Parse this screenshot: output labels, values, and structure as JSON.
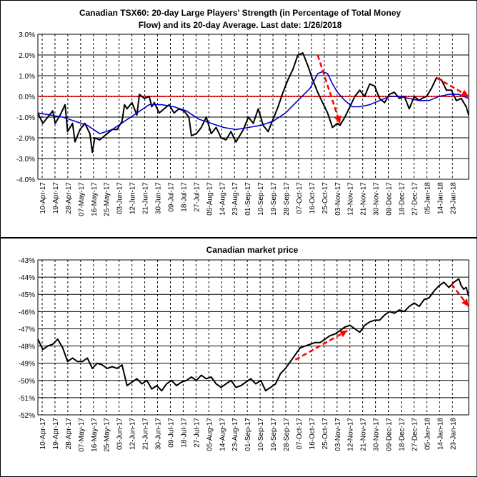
{
  "chart_data": [
    {
      "type": "line",
      "title": "Canadian TSX60: 20-day Large Players' Strength (in Percentage of Total Money",
      "title_line2": "Flow) and its 20-day Average. Last date: 1/26/2018",
      "ylim": [
        -4,
        3
      ],
      "y_ticks": [
        "3.0%",
        "2.0%",
        "1.0%",
        "0.0%",
        "-1.0%",
        "-2.0%",
        "-3.0%",
        "-4.0%"
      ],
      "x_ticks": [
        "10-Apr-17",
        "19-Apr-17",
        "28-Apr-17",
        "07-May-17",
        "16-May-17",
        "25-May-17",
        "03-Jun-17",
        "12-Jun-17",
        "21-Jun-17",
        "30-Jun-17",
        "09-Jul-17",
        "18-Jul-17",
        "27-Jul-17",
        "05-Aug-17",
        "14-Aug-17",
        "23-Aug-17",
        "01-Sep-17",
        "10-Sep-17",
        "19-Sep-17",
        "28-Sep-17",
        "07-Oct-17",
        "16-Oct-17",
        "25-Oct-17",
        "03-Nov-17",
        "12-Nov-17",
        "21-Nov-17",
        "30-Nov-17",
        "09-Dec-17",
        "18-Dec-17",
        "27-Dec-17",
        "05-Jan-18",
        "14-Jan-18",
        "23-Jan-18"
      ],
      "grid": true,
      "zero_line_color": "#cc0000",
      "series": [
        {
          "color": "#000000",
          "points": [
            [
              0,
              -0.8
            ],
            [
              2,
              -1.3
            ],
            [
              4,
              -1.0
            ],
            [
              6,
              -0.7
            ],
            [
              7,
              -1.3
            ],
            [
              9,
              -0.9
            ],
            [
              11,
              -0.4
            ],
            [
              12,
              -1.7
            ],
            [
              14,
              -1.3
            ],
            [
              15,
              -2.2
            ],
            [
              17,
              -1.6
            ],
            [
              19,
              -1.3
            ],
            [
              21,
              -1.8
            ],
            [
              22,
              -2.7
            ],
            [
              23,
              -2.0
            ],
            [
              25,
              -2.1
            ],
            [
              26,
              -2.0
            ],
            [
              28,
              -1.8
            ],
            [
              30,
              -1.6
            ],
            [
              32,
              -1.6
            ],
            [
              34,
              -1.2
            ],
            [
              35,
              -0.4
            ],
            [
              36,
              -0.6
            ],
            [
              38,
              -0.3
            ],
            [
              40,
              -0.9
            ],
            [
              41,
              0.1
            ],
            [
              43,
              -0.1
            ],
            [
              45,
              0.0
            ],
            [
              46,
              -0.5
            ],
            [
              47,
              -0.3
            ],
            [
              49,
              -0.8
            ],
            [
              51,
              -0.6
            ],
            [
              53,
              -0.4
            ],
            [
              55,
              -0.8
            ],
            [
              57,
              -0.6
            ],
            [
              59,
              -0.7
            ],
            [
              61,
              -1.0
            ],
            [
              62,
              -1.9
            ],
            [
              64,
              -1.8
            ],
            [
              66,
              -1.5
            ],
            [
              68,
              -1.0
            ],
            [
              70,
              -1.8
            ],
            [
              72,
              -1.5
            ],
            [
              74,
              -2.0
            ],
            [
              76,
              -2.1
            ],
            [
              78,
              -1.7
            ],
            [
              80,
              -2.2
            ],
            [
              81,
              -2.0
            ],
            [
              83,
              -1.6
            ],
            [
              85,
              -1.0
            ],
            [
              87,
              -1.3
            ],
            [
              89,
              -0.6
            ],
            [
              91,
              -1.4
            ],
            [
              93,
              -1.7
            ],
            [
              95,
              -1.1
            ],
            [
              97,
              -0.5
            ],
            [
              99,
              0.2
            ],
            [
              101,
              0.8
            ],
            [
              103,
              1.3
            ],
            [
              105,
              2.0
            ],
            [
              107,
              2.1
            ],
            [
              109,
              1.5
            ],
            [
              111,
              0.8
            ],
            [
              113,
              0.2
            ],
            [
              115,
              -0.3
            ],
            [
              117,
              -0.8
            ],
            [
              119,
              -1.5
            ],
            [
              121,
              -1.3
            ],
            [
              122,
              -1.4
            ],
            [
              124,
              -1.0
            ],
            [
              126,
              -0.5
            ],
            [
              128,
              0.0
            ],
            [
              130,
              0.3
            ],
            [
              132,
              0.0
            ],
            [
              134,
              0.6
            ],
            [
              136,
              0.5
            ],
            [
              138,
              -0.1
            ],
            [
              140,
              -0.3
            ],
            [
              142,
              0.1
            ],
            [
              144,
              0.2
            ],
            [
              146,
              -0.1
            ],
            [
              148,
              0.0
            ],
            [
              150,
              -0.6
            ],
            [
              152,
              0.0
            ],
            [
              154,
              -0.2
            ],
            [
              155,
              -0.1
            ],
            [
              157,
              0.0
            ],
            [
              159,
              0.4
            ],
            [
              161,
              0.9
            ],
            [
              163,
              0.8
            ],
            [
              165,
              0.3
            ],
            [
              167,
              0.3
            ],
            [
              169,
              -0.2
            ],
            [
              171,
              -0.1
            ],
            [
              173,
              -0.5
            ],
            [
              174,
              -0.9
            ]
          ]
        },
        {
          "color": "#0000cc",
          "points": [
            [
              0,
              -0.8
            ],
            [
              10,
              -1.0
            ],
            [
              20,
              -1.4
            ],
            [
              25,
              -1.8
            ],
            [
              30,
              -1.6
            ],
            [
              35,
              -1.2
            ],
            [
              40,
              -0.8
            ],
            [
              45,
              -0.4
            ],
            [
              50,
              -0.4
            ],
            [
              55,
              -0.5
            ],
            [
              60,
              -0.7
            ],
            [
              65,
              -1.1
            ],
            [
              70,
              -1.3
            ],
            [
              75,
              -1.5
            ],
            [
              80,
              -1.6
            ],
            [
              85,
              -1.5
            ],
            [
              90,
              -1.4
            ],
            [
              95,
              -1.2
            ],
            [
              100,
              -0.8
            ],
            [
              105,
              -0.2
            ],
            [
              110,
              0.4
            ],
            [
              113,
              1.1
            ],
            [
              115,
              1.2
            ],
            [
              117,
              1.1
            ],
            [
              119,
              0.6
            ],
            [
              121,
              0.2
            ],
            [
              124,
              -0.2
            ],
            [
              127,
              -0.5
            ],
            [
              130,
              -0.5
            ],
            [
              134,
              -0.4
            ],
            [
              138,
              -0.2
            ],
            [
              142,
              0.0
            ],
            [
              146,
              0.0
            ],
            [
              150,
              -0.1
            ],
            [
              154,
              -0.2
            ],
            [
              158,
              -0.2
            ],
            [
              162,
              0.0
            ],
            [
              166,
              0.1
            ],
            [
              170,
              0.1
            ],
            [
              174,
              -0.1
            ]
          ]
        }
      ],
      "arrows": [
        {
          "color": "#ff0000",
          "from": [
            113,
            2.0
          ],
          "to": [
            122,
            -1.3
          ]
        },
        {
          "color": "#ff0000",
          "from": [
            161,
            0.9
          ],
          "to": [
            174,
            0.0
          ]
        }
      ]
    },
    {
      "type": "line",
      "title": "Canadian market price",
      "ylim": [
        -52,
        -43
      ],
      "y_ticks": [
        "-43%",
        "-44%",
        "-45%",
        "-46%",
        "-47%",
        "-48%",
        "-49%",
        "-50%",
        "-51%",
        "-52%"
      ],
      "x_ticks": [
        "10-Apr-17",
        "19-Apr-17",
        "28-Apr-17",
        "07-May-17",
        "16-May-17",
        "25-May-17",
        "03-Jun-17",
        "12-Jun-17",
        "21-Jun-17",
        "30-Jun-17",
        "09-Jul-17",
        "18-Jul-17",
        "27-Jul-17",
        "05-Aug-17",
        "14-Aug-17",
        "23-Aug-17",
        "01-Sep-17",
        "10-Sep-17",
        "19-Sep-17",
        "28-Sep-17",
        "07-Oct-17",
        "16-Oct-17",
        "25-Oct-17",
        "03-Nov-17",
        "12-Nov-17",
        "21-Nov-17",
        "30-Nov-17",
        "09-Dec-17",
        "18-Dec-17",
        "27-Dec-17",
        "05-Jan-18",
        "14-Jan-18",
        "23-Jan-18"
      ],
      "grid": true,
      "series": [
        {
          "color": "#000000",
          "points": [
            [
              0,
              -47.6
            ],
            [
              2,
              -48.2
            ],
            [
              4,
              -48.0
            ],
            [
              6,
              -47.9
            ],
            [
              8,
              -47.6
            ],
            [
              10,
              -48.1
            ],
            [
              12,
              -48.9
            ],
            [
              14,
              -48.7
            ],
            [
              16,
              -48.9
            ],
            [
              18,
              -48.9
            ],
            [
              20,
              -48.7
            ],
            [
              22,
              -49.3
            ],
            [
              24,
              -49.0
            ],
            [
              26,
              -49.1
            ],
            [
              28,
              -49.3
            ],
            [
              30,
              -49.2
            ],
            [
              32,
              -49.3
            ],
            [
              34,
              -49.1
            ],
            [
              36,
              -50.3
            ],
            [
              38,
              -50.1
            ],
            [
              40,
              -49.9
            ],
            [
              42,
              -50.2
            ],
            [
              44,
              -50.0
            ],
            [
              46,
              -50.5
            ],
            [
              48,
              -50.3
            ],
            [
              50,
              -50.6
            ],
            [
              52,
              -50.2
            ],
            [
              54,
              -50.0
            ],
            [
              56,
              -50.3
            ],
            [
              58,
              -50.1
            ],
            [
              60,
              -50.0
            ],
            [
              62,
              -49.8
            ],
            [
              64,
              -50.0
            ],
            [
              66,
              -49.7
            ],
            [
              68,
              -49.9
            ],
            [
              70,
              -49.8
            ],
            [
              72,
              -50.2
            ],
            [
              74,
              -50.4
            ],
            [
              76,
              -50.2
            ],
            [
              78,
              -50.0
            ],
            [
              80,
              -50.4
            ],
            [
              82,
              -50.3
            ],
            [
              84,
              -50.1
            ],
            [
              86,
              -49.9
            ],
            [
              88,
              -50.2
            ],
            [
              90,
              -50.0
            ],
            [
              92,
              -50.6
            ],
            [
              94,
              -50.4
            ],
            [
              96,
              -50.2
            ],
            [
              98,
              -49.6
            ],
            [
              100,
              -49.3
            ],
            [
              102,
              -48.9
            ],
            [
              104,
              -48.5
            ],
            [
              106,
              -48.1
            ],
            [
              108,
              -48.0
            ],
            [
              110,
              -47.9
            ],
            [
              112,
              -47.8
            ],
            [
              114,
              -47.8
            ],
            [
              116,
              -47.6
            ],
            [
              118,
              -47.4
            ],
            [
              120,
              -47.3
            ],
            [
              122,
              -47.1
            ],
            [
              124,
              -46.9
            ],
            [
              126,
              -46.8
            ],
            [
              128,
              -47.0
            ],
            [
              130,
              -47.2
            ],
            [
              132,
              -46.8
            ],
            [
              134,
              -46.6
            ],
            [
              136,
              -46.5
            ],
            [
              138,
              -46.5
            ],
            [
              140,
              -46.2
            ],
            [
              142,
              -46.0
            ],
            [
              144,
              -46.1
            ],
            [
              146,
              -45.9
            ],
            [
              148,
              -46.0
            ],
            [
              150,
              -45.7
            ],
            [
              152,
              -45.5
            ],
            [
              154,
              -45.7
            ],
            [
              156,
              -45.3
            ],
            [
              158,
              -45.2
            ],
            [
              160,
              -44.8
            ],
            [
              162,
              -44.5
            ],
            [
              164,
              -44.3
            ],
            [
              166,
              -44.6
            ],
            [
              168,
              -44.3
            ],
            [
              170,
              -44.1
            ],
            [
              171,
              -44.5
            ],
            [
              172,
              -44.7
            ],
            [
              173,
              -44.6
            ],
            [
              174,
              -45.1
            ]
          ]
        }
      ],
      "arrows": [
        {
          "color": "#ff0000",
          "from": [
            104,
            -48.8
          ],
          "to": [
            125,
            -47.1
          ]
        },
        {
          "color": "#ff0000",
          "from": [
            167,
            -44.4
          ],
          "to": [
            174,
            -45.7
          ]
        }
      ]
    }
  ]
}
